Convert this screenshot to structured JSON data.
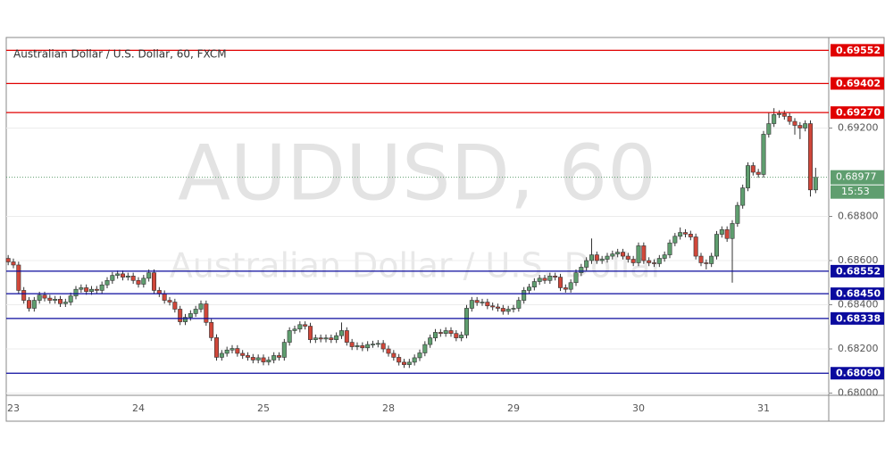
{
  "chart_data": {
    "type": "candlestick",
    "title": "Australian Dollar / U.S. Dollar, 60, FXCM",
    "watermark": [
      "AUDUSD, 60",
      "Australian Dollar / U.S. Dollar"
    ],
    "categories": [
      null,
      "23",
      null,
      null,
      null,
      null,
      null,
      null,
      null,
      null,
      null,
      null,
      null,
      null,
      null,
      null,
      null,
      null,
      null,
      null,
      null,
      null,
      null,
      null,
      null,
      "24",
      null,
      null,
      null,
      null,
      null,
      null,
      null,
      null,
      null,
      null,
      null,
      null,
      null,
      null,
      null,
      null,
      null,
      null,
      null,
      null,
      null,
      null,
      null,
      "25",
      null,
      null,
      null,
      null,
      null,
      null,
      null,
      null,
      null,
      null,
      null,
      null,
      null,
      null,
      null,
      null,
      null,
      null,
      null,
      null,
      null,
      null,
      null,
      "28",
      null,
      null,
      null,
      null,
      null,
      null,
      null,
      null,
      null,
      null,
      null,
      null,
      null,
      null,
      null,
      null,
      null,
      null,
      null,
      null,
      null,
      null,
      null,
      "29",
      null,
      null,
      null,
      null,
      null,
      null,
      null,
      null,
      null,
      null,
      null,
      null,
      null,
      null,
      null,
      null,
      null,
      null,
      null,
      null,
      null,
      null,
      null,
      "30",
      null,
      null,
      null,
      null,
      null,
      null,
      null,
      null,
      null,
      null,
      null,
      null,
      null,
      null,
      null,
      null,
      null,
      null,
      null,
      null,
      null,
      null,
      null,
      "31",
      null,
      null,
      null,
      null,
      null,
      null,
      null,
      null,
      null,
      null
    ],
    "open": [
      0.6861,
      0.68594,
      0.6858,
      0.68465,
      0.6842,
      0.68384,
      0.6842,
      0.68444,
      0.6843,
      0.6842,
      0.68425,
      0.68405,
      0.68412,
      0.6844,
      0.6847,
      0.68477,
      0.6846,
      0.6847,
      0.68465,
      0.6849,
      0.6851,
      0.68533,
      0.6854,
      0.68525,
      0.6853,
      0.6851,
      0.68493,
      0.6852,
      0.68545,
      0.68465,
      0.6845,
      0.6842,
      0.68412,
      0.6838,
      0.68323,
      0.68343,
      0.6836,
      0.6838,
      0.68404,
      0.6832,
      0.68251,
      0.68162,
      0.6818,
      0.68195,
      0.68202,
      0.6818,
      0.6817,
      0.68162,
      0.6815,
      0.6816,
      0.68141,
      0.6815,
      0.6817,
      0.68162,
      0.6823,
      0.68283,
      0.6829,
      0.6831,
      0.68303,
      0.68242,
      0.6825,
      0.68245,
      0.6825,
      0.68242,
      0.6826,
      0.68283,
      0.6823,
      0.6821,
      0.68215,
      0.68205,
      0.6822,
      0.68222,
      0.68225,
      0.682,
      0.6818,
      0.68162,
      0.6814,
      0.68129,
      0.6814,
      0.6816,
      0.68182,
      0.6822,
      0.6825,
      0.68275,
      0.6827,
      0.68283,
      0.6827,
      0.6825,
      0.68263,
      0.68384,
      0.6842,
      0.6841,
      0.68412,
      0.68395,
      0.6839,
      0.68384,
      0.6837,
      0.6838,
      0.68384,
      0.6842,
      0.68465,
      0.6848,
      0.68505,
      0.6852,
      0.6851,
      0.6853,
      0.68525,
      0.68477,
      0.6847,
      0.685,
      0.68545,
      0.6857,
      0.686,
      0.68626,
      0.686,
      0.68606,
      0.6862,
      0.6863,
      0.68638,
      0.6862,
      0.68606,
      0.6859,
      0.68667,
      0.686,
      0.6859,
      0.68586,
      0.6861,
      0.68626,
      0.6868,
      0.6871,
      0.68727,
      0.6872,
      0.68707,
      0.6862,
      0.6859,
      0.68586,
      0.6862,
      0.68719,
      0.6874,
      0.687,
      0.68768,
      0.6885,
      0.68929,
      0.6903,
      0.69,
      0.6899,
      0.69172,
      0.6922,
      0.69261,
      0.69265,
      0.69253,
      0.6923,
      0.69212,
      0.692,
      0.6922,
      0.6892
    ],
    "high": [
      0.68625,
      0.68609,
      0.68595,
      0.6848,
      0.68435,
      0.68435,
      0.68459,
      0.68459,
      0.68445,
      0.6844,
      0.6844,
      0.68427,
      0.68455,
      0.68485,
      0.68492,
      0.68492,
      0.68485,
      0.68485,
      0.68505,
      0.68525,
      0.68548,
      0.68555,
      0.68555,
      0.68545,
      0.68545,
      0.68525,
      0.68535,
      0.6856,
      0.6856,
      0.6848,
      0.68465,
      0.68435,
      0.68427,
      0.68395,
      0.68358,
      0.68375,
      0.68395,
      0.68419,
      0.68419,
      0.68335,
      0.68266,
      0.68195,
      0.6821,
      0.68217,
      0.68217,
      0.68195,
      0.68185,
      0.68177,
      0.68175,
      0.68175,
      0.68165,
      0.68185,
      0.68185,
      0.68245,
      0.68298,
      0.68305,
      0.68325,
      0.68325,
      0.68318,
      0.68265,
      0.68265,
      0.68265,
      0.68265,
      0.68275,
      0.6832,
      0.68298,
      0.68245,
      0.6823,
      0.6823,
      0.68235,
      0.68237,
      0.6824,
      0.6824,
      0.68215,
      0.68195,
      0.68177,
      0.68155,
      0.68155,
      0.68175,
      0.68197,
      0.68235,
      0.68265,
      0.6829,
      0.6829,
      0.68298,
      0.68298,
      0.68285,
      0.68278,
      0.68399,
      0.68435,
      0.68435,
      0.68427,
      0.68427,
      0.6841,
      0.68405,
      0.68399,
      0.68395,
      0.68399,
      0.68435,
      0.6848,
      0.68495,
      0.6852,
      0.68535,
      0.68535,
      0.68545,
      0.68545,
      0.6854,
      0.68492,
      0.68515,
      0.6856,
      0.68585,
      0.68615,
      0.687,
      0.68641,
      0.68621,
      0.68635,
      0.68645,
      0.68653,
      0.68653,
      0.68635,
      0.68621,
      0.68682,
      0.68682,
      0.68615,
      0.68605,
      0.68625,
      0.68641,
      0.68695,
      0.68725,
      0.6875,
      0.68742,
      0.68735,
      0.68722,
      0.68635,
      0.68605,
      0.68635,
      0.68734,
      0.68755,
      0.68755,
      0.68783,
      0.68865,
      0.68944,
      0.69045,
      0.69045,
      0.69015,
      0.69187,
      0.6927,
      0.6929,
      0.6928,
      0.6928,
      0.69268,
      0.69245,
      0.69227,
      0.69235,
      0.69235,
      0.6902
    ],
    "low": [
      0.68579,
      0.68565,
      0.6845,
      0.68405,
      0.68369,
      0.68369,
      0.68405,
      0.68415,
      0.68405,
      0.68405,
      0.6839,
      0.6839,
      0.68397,
      0.68425,
      0.68455,
      0.68445,
      0.68445,
      0.6845,
      0.6845,
      0.68475,
      0.68495,
      0.68518,
      0.6851,
      0.6851,
      0.68495,
      0.68478,
      0.68478,
      0.68505,
      0.6845,
      0.68435,
      0.68405,
      0.68397,
      0.68365,
      0.68308,
      0.68308,
      0.68328,
      0.68345,
      0.68365,
      0.68305,
      0.68236,
      0.68147,
      0.68147,
      0.68165,
      0.6818,
      0.68165,
      0.68155,
      0.68147,
      0.68135,
      0.68135,
      0.68126,
      0.68126,
      0.68135,
      0.68147,
      0.68147,
      0.68215,
      0.68268,
      0.68275,
      0.68288,
      0.68227,
      0.68227,
      0.6823,
      0.6823,
      0.68227,
      0.68227,
      0.68245,
      0.68215,
      0.68195,
      0.68195,
      0.6819,
      0.6819,
      0.68205,
      0.68207,
      0.68185,
      0.68165,
      0.68147,
      0.68125,
      0.68114,
      0.68114,
      0.68125,
      0.68145,
      0.68167,
      0.68205,
      0.68235,
      0.68255,
      0.68255,
      0.68255,
      0.68235,
      0.68235,
      0.68248,
      0.68369,
      0.68395,
      0.68395,
      0.6838,
      0.68375,
      0.68369,
      0.68355,
      0.68355,
      0.68365,
      0.68369,
      0.68405,
      0.6845,
      0.68465,
      0.6849,
      0.68495,
      0.68495,
      0.6851,
      0.68462,
      0.68455,
      0.68455,
      0.68485,
      0.6853,
      0.68555,
      0.68585,
      0.68585,
      0.68585,
      0.68591,
      0.68605,
      0.68615,
      0.68605,
      0.68591,
      0.68575,
      0.68575,
      0.68585,
      0.68575,
      0.68571,
      0.68571,
      0.68595,
      0.68611,
      0.68665,
      0.68695,
      0.68705,
      0.68692,
      0.68605,
      0.68575,
      0.6856,
      0.68571,
      0.68605,
      0.68704,
      0.68685,
      0.685,
      0.68753,
      0.68835,
      0.68914,
      0.68985,
      0.68975,
      0.68975,
      0.69157,
      0.69205,
      0.69246,
      0.69238,
      0.69215,
      0.6917,
      0.6915,
      0.69185,
      0.6889,
      0.68905
    ],
    "close": [
      0.68594,
      0.6858,
      0.68465,
      0.6842,
      0.68384,
      0.6842,
      0.68444,
      0.6843,
      0.6842,
      0.68425,
      0.68405,
      0.68412,
      0.6844,
      0.6847,
      0.68477,
      0.6846,
      0.6847,
      0.68465,
      0.6849,
      0.6851,
      0.68533,
      0.6854,
      0.68525,
      0.6853,
      0.6851,
      0.68493,
      0.6852,
      0.68545,
      0.68465,
      0.6845,
      0.6842,
      0.68412,
      0.6838,
      0.68323,
      0.68343,
      0.6836,
      0.6838,
      0.68404,
      0.6832,
      0.68251,
      0.68162,
      0.6818,
      0.68195,
      0.68202,
      0.6818,
      0.6817,
      0.68162,
      0.6815,
      0.6816,
      0.68141,
      0.6815,
      0.6817,
      0.68162,
      0.6823,
      0.68283,
      0.6829,
      0.6831,
      0.68303,
      0.68242,
      0.6825,
      0.68245,
      0.6825,
      0.68242,
      0.6826,
      0.68283,
      0.6823,
      0.6821,
      0.68215,
      0.68205,
      0.6822,
      0.68222,
      0.68225,
      0.682,
      0.6818,
      0.68162,
      0.6814,
      0.68129,
      0.6814,
      0.6816,
      0.68182,
      0.6822,
      0.6825,
      0.68275,
      0.6827,
      0.68283,
      0.6827,
      0.6825,
      0.68263,
      0.68384,
      0.6842,
      0.6841,
      0.68412,
      0.68395,
      0.6839,
      0.68384,
      0.6837,
      0.6838,
      0.68384,
      0.6842,
      0.68465,
      0.6848,
      0.68505,
      0.6852,
      0.6851,
      0.6853,
      0.68525,
      0.68477,
      0.6847,
      0.685,
      0.68545,
      0.6857,
      0.686,
      0.68626,
      0.686,
      0.68606,
      0.6862,
      0.6863,
      0.68638,
      0.6862,
      0.68606,
      0.6859,
      0.68667,
      0.686,
      0.6859,
      0.68586,
      0.6861,
      0.68626,
      0.6868,
      0.6871,
      0.68727,
      0.6872,
      0.68707,
      0.6862,
      0.6859,
      0.68586,
      0.6862,
      0.68719,
      0.6874,
      0.687,
      0.68768,
      0.6885,
      0.68929,
      0.6903,
      0.69,
      0.6899,
      0.69172,
      0.6922,
      0.69261,
      0.69265,
      0.69253,
      0.6923,
      0.69212,
      0.692,
      0.6922,
      0.6892,
      0.68977
    ],
    "up_color": "#5f9e6f",
    "down_color": "#d0473a",
    "ylim": [
      0.6799,
      0.6961
    ],
    "yticks": [
      {
        "value": 0.692,
        "label": "0.69200"
      },
      {
        "value": 0.688,
        "label": "0.68800"
      },
      {
        "value": 0.686,
        "label": "0.68600"
      },
      {
        "value": 0.684,
        "label": "0.68400"
      },
      {
        "value": 0.682,
        "label": "0.68200"
      },
      {
        "value": 0.68,
        "label": "0.68000"
      }
    ],
    "grid": true,
    "levels": [
      {
        "value": 0.69552,
        "label": "0.69552",
        "color": "#e00000"
      },
      {
        "value": 0.69402,
        "label": "0.69402",
        "color": "#e00000"
      },
      {
        "value": 0.6927,
        "label": "0.69270",
        "color": "#e00000"
      },
      {
        "value": 0.68552,
        "label": "0.68552",
        "color": "#0a0a9e"
      },
      {
        "value": 0.6845,
        "label": "0.68450",
        "color": "#0a0a9e"
      },
      {
        "value": 0.68338,
        "label": "0.68338",
        "color": "#0a0a9e"
      },
      {
        "value": 0.6809,
        "label": "0.68090",
        "color": "#0a0a9e"
      }
    ],
    "last_price": {
      "value": 0.68977,
      "label": "0.68977"
    },
    "countdown": "15:53"
  }
}
